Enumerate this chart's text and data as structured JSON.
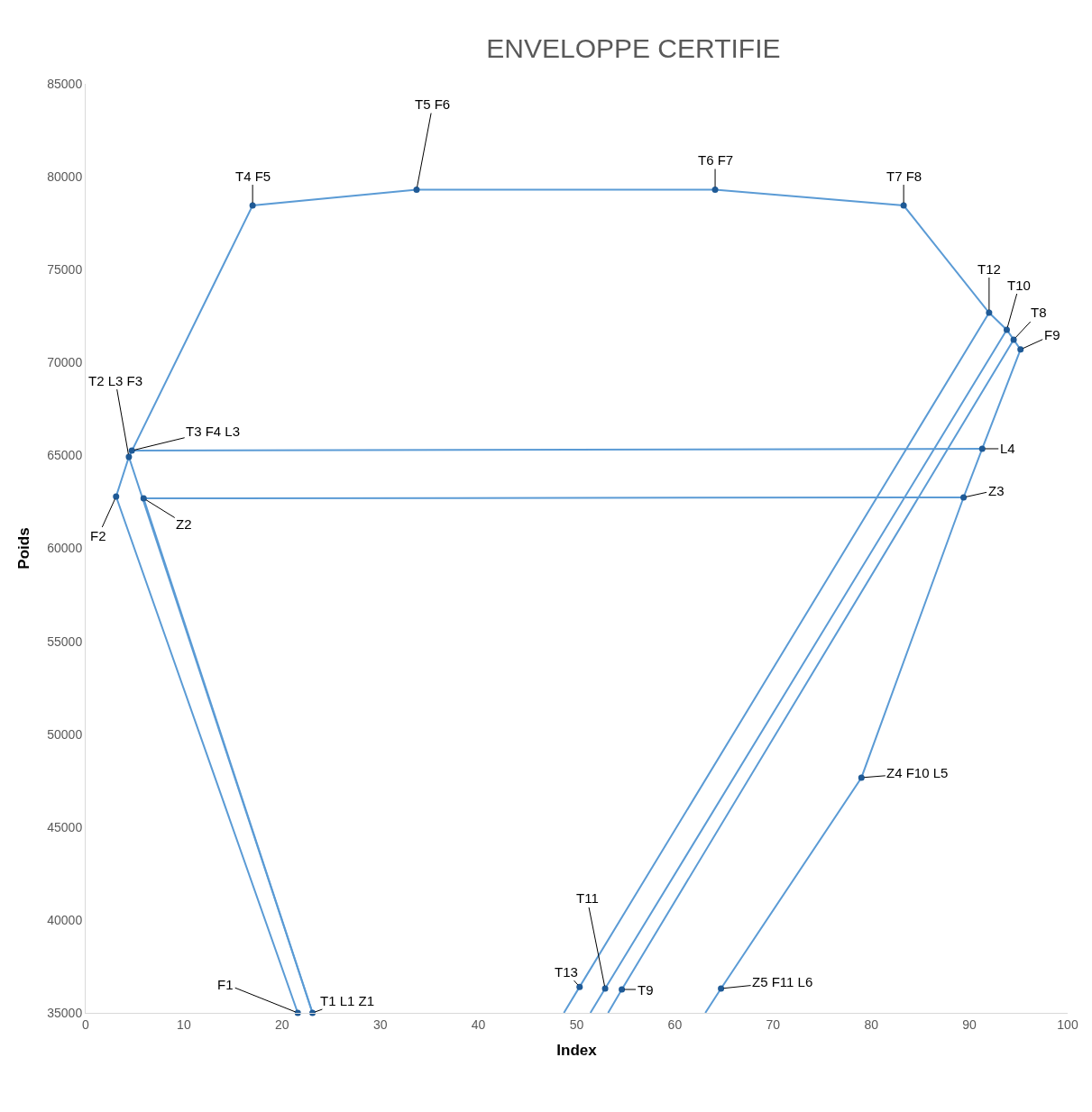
{
  "chart_data": {
    "type": "line",
    "title": "ENVELOPPE CERTIFIE",
    "xlabel": "Index",
    "ylabel": "Poids",
    "xlim": [
      0,
      100
    ],
    "xticks": [
      0,
      10,
      20,
      30,
      40,
      50,
      60,
      70,
      80,
      90,
      100
    ],
    "ylim": [
      35000,
      85000
    ],
    "yticks": [
      35000,
      40000,
      45000,
      50000,
      55000,
      60000,
      65000,
      70000,
      75000,
      80000,
      85000
    ],
    "line_style": "solid",
    "series": [
      {
        "color": "#5b9bd5",
        "marker": "none",
        "x": [
          21.6,
          3.1,
          4.4,
          17.0,
          33.7,
          64.1,
          83.3,
          92.0,
          93.8,
          94.5,
          95.2,
          91.3,
          89.4,
          79.0,
          64.7,
          63.1
        ],
        "values": [
          35000,
          62790,
          64920,
          78450,
          79300,
          79300,
          78450,
          72680,
          71760,
          71230,
          70700,
          65360,
          62740,
          47660,
          36310,
          35000
        ]
      },
      {
        "color": "#5b9bd5",
        "marker": "none",
        "x": [
          4.7,
          91.3
        ],
        "values": [
          65260,
          65360
        ]
      },
      {
        "color": "#5b9bd5",
        "marker": "none",
        "x": [
          5.9,
          89.4
        ],
        "values": [
          62690,
          62740
        ]
      },
      {
        "color": "#5b9bd5",
        "marker": "none",
        "x": [
          4.4,
          23.1
        ],
        "values": [
          64920,
          35000
        ]
      },
      {
        "color": "#5b9bd5",
        "marker": "none",
        "x": [
          5.9,
          23.1
        ],
        "values": [
          62690,
          35000
        ]
      },
      {
        "color": "#5b9bd5",
        "marker": "none",
        "x": [
          92.0,
          50.3,
          48.7
        ],
        "values": [
          72680,
          36400,
          35000
        ]
      },
      {
        "color": "#5b9bd5",
        "marker": "none",
        "x": [
          93.8,
          52.9,
          51.4
        ],
        "values": [
          71760,
          36310,
          35000
        ]
      },
      {
        "color": "#5b9bd5",
        "marker": "none",
        "x": [
          94.5,
          54.6,
          53.2
        ],
        "values": [
          71230,
          36260,
          35000
        ]
      },
      {
        "type": "scatter",
        "color": "#1f5a96",
        "marker": "circle",
        "x": [
          21.6,
          23.1,
          3.1,
          4.4,
          4.7,
          5.9,
          17.0,
          33.7,
          64.1,
          83.3,
          92.0,
          93.8,
          94.5,
          95.2,
          91.3,
          89.4,
          79.0,
          50.3,
          52.9,
          54.6,
          64.7
        ],
        "values": [
          35000,
          35000,
          62790,
          64920,
          65260,
          62690,
          78450,
          79300,
          79300,
          78450,
          72680,
          71760,
          71230,
          70700,
          65360,
          62740,
          47660,
          36400,
          36310,
          36260,
          36310
        ]
      }
    ],
    "annotations": [
      {
        "text": "F1",
        "x": 21.6,
        "y": 35000
      },
      {
        "text": "T1 L1 Z1",
        "x": 23.1,
        "y": 35000
      },
      {
        "text": "F2",
        "x": 3.1,
        "y": 62790
      },
      {
        "text": "T2 L3 F3",
        "x": 4.4,
        "y": 64920
      },
      {
        "text": "T3 F4 L3",
        "x": 4.7,
        "y": 65260
      },
      {
        "text": "Z2",
        "x": 5.9,
        "y": 62690
      },
      {
        "text": "T4 F5",
        "x": 17.0,
        "y": 78450
      },
      {
        "text": "T5 F6",
        "x": 33.7,
        "y": 79300
      },
      {
        "text": "T6 F7",
        "x": 64.1,
        "y": 79300
      },
      {
        "text": "T7 F8",
        "x": 83.3,
        "y": 78450
      },
      {
        "text": "T12",
        "x": 92.0,
        "y": 72680
      },
      {
        "text": "T10",
        "x": 93.8,
        "y": 71760
      },
      {
        "text": "T8",
        "x": 94.5,
        "y": 71230
      },
      {
        "text": "F9",
        "x": 95.2,
        "y": 70700
      },
      {
        "text": "L4",
        "x": 91.3,
        "y": 65360
      },
      {
        "text": "Z3",
        "x": 89.4,
        "y": 62740
      },
      {
        "text": "Z4 F10 L5",
        "x": 79.0,
        "y": 47660
      },
      {
        "text": "T13",
        "x": 50.3,
        "y": 36400
      },
      {
        "text": "T11",
        "x": 52.9,
        "y": 36310
      },
      {
        "text": "T9",
        "x": 54.6,
        "y": 36260
      },
      {
        "text": "Z5 F11 L6",
        "x": 64.7,
        "y": 36310
      }
    ]
  }
}
